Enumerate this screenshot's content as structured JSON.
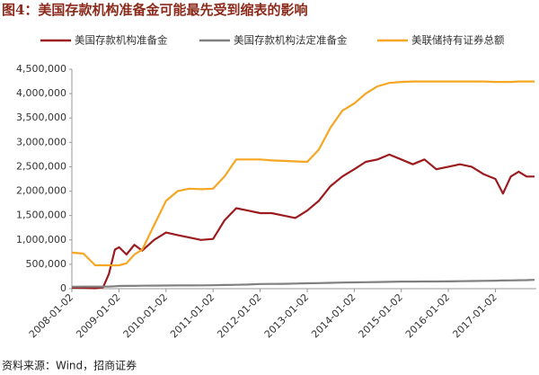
{
  "chart_data": {
    "type": "line",
    "title": "图4：美国存款机构准备金可能最先受到缩表的影响",
    "source": "资料来源：Wind，招商证券",
    "x": [
      "2008-01-02",
      "2008-04-01",
      "2008-07-01",
      "2008-09-01",
      "2008-10-15",
      "2008-12-01",
      "2009-01-02",
      "2009-03-01",
      "2009-05-01",
      "2009-07-01",
      "2009-10-01",
      "2010-01-02",
      "2010-04-01",
      "2010-07-01",
      "2010-10-01",
      "2011-01-02",
      "2011-04-01",
      "2011-07-01",
      "2011-10-01",
      "2012-01-02",
      "2012-04-01",
      "2012-07-01",
      "2012-10-01",
      "2013-01-02",
      "2013-04-01",
      "2013-07-01",
      "2013-10-01",
      "2014-01-02",
      "2014-04-01",
      "2014-07-01",
      "2014-10-01",
      "2015-01-02",
      "2015-04-01",
      "2015-07-01",
      "2015-10-01",
      "2016-01-02",
      "2016-04-01",
      "2016-07-01",
      "2016-10-01",
      "2017-01-02",
      "2017-03-01",
      "2017-05-01",
      "2017-07-01",
      "2017-09-01",
      "2017-11-01"
    ],
    "series": [
      {
        "name": "美国存款机构准备金",
        "color": "#9b1b1e",
        "values": [
          20000,
          15000,
          10000,
          30000,
          300000,
          800000,
          850000,
          700000,
          900000,
          780000,
          1000000,
          1150000,
          1100000,
          1050000,
          1000000,
          1020000,
          1400000,
          1650000,
          1600000,
          1550000,
          1550000,
          1500000,
          1450000,
          1600000,
          1800000,
          2100000,
          2300000,
          2450000,
          2600000,
          2650000,
          2750000,
          2650000,
          2550000,
          2650000,
          2450000,
          2500000,
          2550000,
          2500000,
          2350000,
          2250000,
          1950000,
          2300000,
          2400000,
          2300000,
          2300000
        ]
      },
      {
        "name": "美国存款机构法定准备金",
        "color": "#808080",
        "values": [
          40000,
          42000,
          42000,
          43000,
          45000,
          50000,
          55000,
          57000,
          58000,
          60000,
          62000,
          65000,
          66000,
          67000,
          68000,
          70000,
          75000,
          80000,
          85000,
          95000,
          98000,
          100000,
          105000,
          110000,
          115000,
          120000,
          125000,
          130000,
          133000,
          136000,
          140000,
          145000,
          146000,
          147000,
          148000,
          150000,
          153000,
          156000,
          160000,
          165000,
          168000,
          170000,
          173000,
          176000,
          180000
        ]
      },
      {
        "name": "美联储持有证券总额",
        "color": "#f5a623",
        "values": [
          740000,
          720000,
          480000,
          480000,
          480000,
          475000,
          480000,
          520000,
          700000,
          800000,
          1300000,
          1800000,
          2000000,
          2050000,
          2040000,
          2050000,
          2300000,
          2650000,
          2650000,
          2650000,
          2630000,
          2620000,
          2610000,
          2600000,
          2850000,
          3300000,
          3650000,
          3800000,
          4000000,
          4150000,
          4220000,
          4240000,
          4250000,
          4250000,
          4250000,
          4250000,
          4250000,
          4250000,
          4250000,
          4240000,
          4240000,
          4240000,
          4250000,
          4250000,
          4250000
        ]
      }
    ],
    "xlim": [
      "2008-01-02",
      "2017-11-15"
    ],
    "xticks": [
      "2008-01-02",
      "2009-01-02",
      "2010-01-02",
      "2011-01-02",
      "2012-01-02",
      "2013-01-02",
      "2014-01-02",
      "2015-01-02",
      "2016-01-02",
      "2017-01-02"
    ],
    "ylim": [
      0,
      4500000
    ],
    "yticks": [
      0,
      {
        "value": 500000,
        "label": "500,000"
      },
      {
        "value": 1000000,
        "label": "1,000,000"
      },
      {
        "value": 1500000,
        "label": "1,500,000"
      },
      {
        "value": 2000000,
        "label": "2,000,000"
      },
      {
        "value": 2500000,
        "label": "2,500,000"
      },
      {
        "value": 3000000,
        "label": "3,000,000"
      },
      {
        "value": 3500000,
        "label": "3,500,000"
      },
      {
        "value": 4000000,
        "label": "4,000,000"
      },
      {
        "value": 4500000,
        "label": "4,500,000"
      }
    ],
    "grid": false
  }
}
